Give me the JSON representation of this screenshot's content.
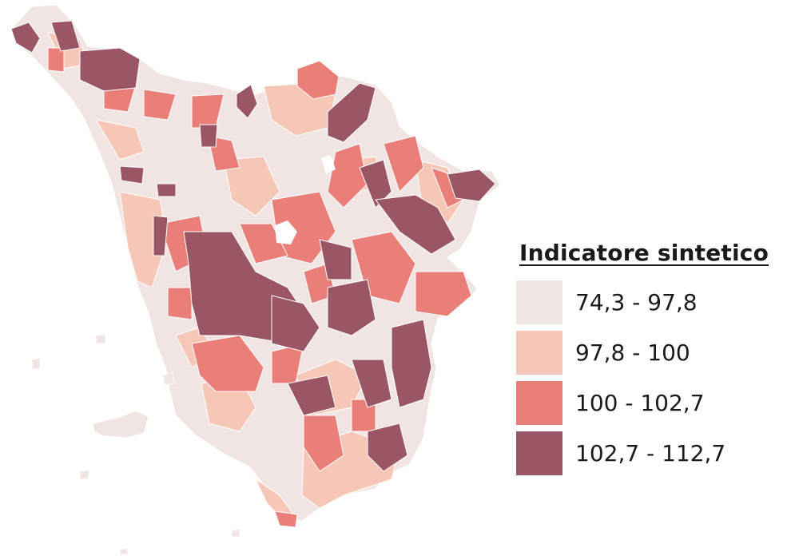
{
  "legend": {
    "title": "Indicatore sintetico",
    "classes": [
      {
        "label": "74,3 - 97,8",
        "color": "#f1e5e3"
      },
      {
        "label": "97,8 - 100",
        "color": "#f6c7b6"
      },
      {
        "label": "100 - 102,7",
        "color": "#ea7f79"
      },
      {
        "label": "102,7 - 112,7",
        "color": "#9a5665"
      }
    ]
  },
  "map": {
    "region": "Tuscany municipalities choropleth",
    "boundary_color": "#ffffff"
  }
}
